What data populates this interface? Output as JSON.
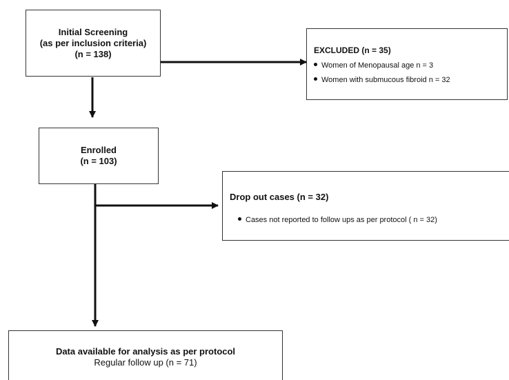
{
  "screening": {
    "line1": "Initial Screening",
    "line2": "(as per inclusion criteria)",
    "line3": "(n = 138)"
  },
  "excluded": {
    "title": "EXCLUDED (n = 35)",
    "items": [
      "Women of Menopausal age  n = 3",
      "Women with submucous fibroid  n = 32"
    ]
  },
  "enrolled": {
    "line1": "Enrolled",
    "line2": "(n = 103)"
  },
  "dropout": {
    "title": "Drop out cases (n = 32)",
    "items": [
      "Cases not reported to follow ups as per protocol ( n = 32)"
    ]
  },
  "analysis": {
    "line1": "Data available for analysis as per protocol",
    "line2": "Regular follow up (n = 71)"
  }
}
